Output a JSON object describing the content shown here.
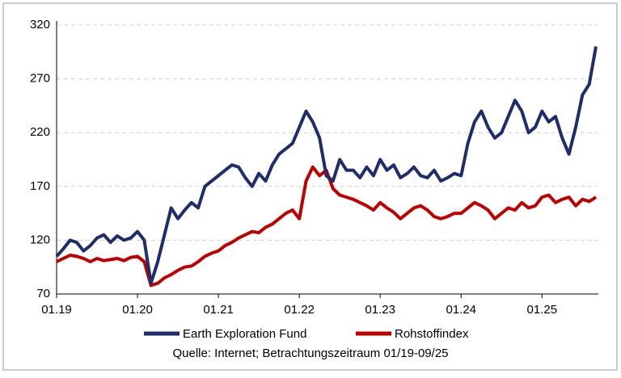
{
  "chart_data": {
    "type": "line",
    "categories": [
      "01.19",
      null,
      null,
      null,
      null,
      null,
      null,
      null,
      null,
      null,
      null,
      null,
      "01.20",
      null,
      null,
      null,
      null,
      null,
      null,
      null,
      null,
      null,
      null,
      null,
      "01.21",
      null,
      null,
      null,
      null,
      null,
      null,
      null,
      null,
      null,
      null,
      null,
      "01.22",
      null,
      null,
      null,
      null,
      null,
      null,
      null,
      null,
      null,
      null,
      null,
      "01.23",
      null,
      null,
      null,
      null,
      null,
      null,
      null,
      null,
      null,
      null,
      null,
      "01.24",
      null,
      null,
      null,
      null,
      null,
      null,
      null,
      null,
      null,
      null,
      null,
      "01.25",
      null,
      null,
      null,
      null,
      null,
      null,
      null,
      null
    ],
    "series": [
      {
        "name": "Earth Exploration Fund",
        "color": "#1f2d6b",
        "values": [
          105,
          112,
          120,
          118,
          110,
          115,
          122,
          125,
          118,
          124,
          120,
          122,
          128,
          120,
          80,
          100,
          125,
          150,
          140,
          148,
          155,
          150,
          170,
          175,
          180,
          185,
          190,
          188,
          178,
          170,
          182,
          175,
          190,
          200,
          205,
          210,
          225,
          240,
          230,
          215,
          180,
          175,
          195,
          185,
          185,
          178,
          188,
          180,
          195,
          185,
          190,
          178,
          182,
          188,
          180,
          178,
          185,
          175,
          178,
          182,
          180,
          210,
          230,
          240,
          225,
          215,
          220,
          235,
          250,
          240,
          220,
          225,
          240,
          230,
          235,
          215,
          200,
          225,
          255,
          265,
          300
        ]
      },
      {
        "name": "Rohstoffindex",
        "color": "#c00000",
        "values": [
          100,
          103,
          106,
          105,
          103,
          100,
          103,
          101,
          102,
          103,
          101,
          104,
          105,
          100,
          78,
          80,
          85,
          88,
          92,
          95,
          96,
          100,
          105,
          108,
          110,
          115,
          118,
          122,
          125,
          128,
          127,
          132,
          135,
          140,
          145,
          148,
          140,
          175,
          188,
          180,
          185,
          168,
          162,
          160,
          158,
          155,
          152,
          148,
          155,
          150,
          146,
          140,
          145,
          150,
          152,
          148,
          142,
          140,
          142,
          145,
          145,
          150,
          155,
          152,
          148,
          140,
          145,
          150,
          148,
          155,
          150,
          152,
          160,
          162,
          155,
          158,
          160,
          152,
          158,
          156,
          160
        ]
      }
    ],
    "ylim": [
      70,
      320
    ],
    "yticks": [
      70,
      120,
      170,
      220,
      270,
      320
    ],
    "grid": true,
    "source": "Quelle: Internet; Betrachtungszeitraum 01/19-09/25"
  }
}
